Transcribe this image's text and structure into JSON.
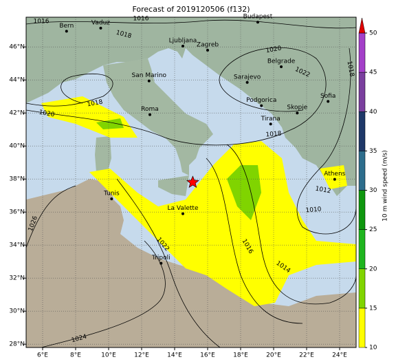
{
  "title": "Forecast of 2019120506 (f132)",
  "lon_ticks": [
    {
      "value": 6,
      "label": "6°E"
    },
    {
      "value": 8,
      "label": "8°E"
    },
    {
      "value": 10,
      "label": "10°E"
    },
    {
      "value": 12,
      "label": "12°E"
    },
    {
      "value": 14,
      "label": "14°E"
    },
    {
      "value": 16,
      "label": "16°E"
    },
    {
      "value": 18,
      "label": "18°E"
    },
    {
      "value": 20,
      "label": "20°E"
    },
    {
      "value": 22,
      "label": "22°E"
    },
    {
      "value": 24,
      "label": "24°E"
    }
  ],
  "lat_ticks": [
    {
      "value": 28,
      "label": "28°N"
    },
    {
      "value": 30,
      "label": "30°N"
    },
    {
      "value": 32,
      "label": "32°N"
    },
    {
      "value": 34,
      "label": "34°N"
    },
    {
      "value": 36,
      "label": "36°N"
    },
    {
      "value": 38,
      "label": "38°N"
    },
    {
      "value": 40,
      "label": "40°N"
    },
    {
      "value": 42,
      "label": "42°N"
    },
    {
      "value": 44,
      "label": "44°N"
    },
    {
      "value": 46,
      "label": "46°N"
    }
  ],
  "cities": [
    {
      "name": "Bern",
      "lon": 7.45,
      "lat": 46.95
    },
    {
      "name": "Vaduz",
      "lon": 9.52,
      "lat": 47.14
    },
    {
      "name": "Budapest",
      "lon": 19.04,
      "lat": 47.5
    },
    {
      "name": "Ljubljana",
      "lon": 14.5,
      "lat": 46.05
    },
    {
      "name": "Zagreb",
      "lon": 16.0,
      "lat": 45.8
    },
    {
      "name": "San Marino",
      "lon": 12.45,
      "lat": 43.94
    },
    {
      "name": "Sarajevo",
      "lon": 18.4,
      "lat": 43.85
    },
    {
      "name": "Belgrade",
      "lon": 20.46,
      "lat": 44.8
    },
    {
      "name": "Sofia",
      "lon": 23.3,
      "lat": 42.7
    },
    {
      "name": "Podgorica",
      "lon": 19.26,
      "lat": 42.44
    },
    {
      "name": "Skopje",
      "lon": 21.43,
      "lat": 42.0
    },
    {
      "name": "Tirana",
      "lon": 19.82,
      "lat": 41.33
    },
    {
      "name": "Roma",
      "lon": 12.5,
      "lat": 41.9
    },
    {
      "name": "Athens",
      "lon": 23.7,
      "lat": 37.98
    },
    {
      "name": "Tunis",
      "lon": 10.18,
      "lat": 36.8
    },
    {
      "name": "La Valette",
      "lon": 14.5,
      "lat": 35.9
    },
    {
      "name": "Tripoli",
      "lon": 13.18,
      "lat": 32.9
    }
  ],
  "marker": {
    "lon": 15.1,
    "lat": 37.8,
    "color": "#ff0000"
  },
  "contour_labels": [
    "1016",
    "1016",
    "1018",
    "1020",
    "1022",
    "1018",
    "1018",
    "1020",
    "1018",
    "1012",
    "1010",
    "1016",
    "1014",
    "1022",
    "1026",
    "1024"
  ],
  "colorbar": {
    "label": "10 m wind speed (m/s)",
    "ticks": [
      10,
      15,
      20,
      25,
      30,
      35,
      40,
      45,
      50
    ],
    "colors": [
      "#ffff00",
      "#80d400",
      "#1fb51f",
      "#0e960e",
      "#2d6d8c",
      "#1e3868",
      "#7a3f9e",
      "#a33fc8"
    ],
    "extend_color": "#e00000"
  }
}
